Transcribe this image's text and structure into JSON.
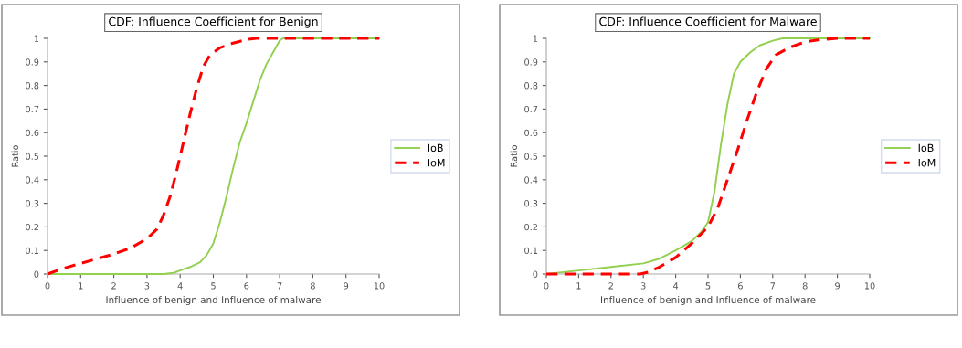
{
  "chart_data": [
    {
      "type": "line",
      "title": "CDF: Influence Coefficient for Benign",
      "xlabel": "Influence of benign and Influence of malware",
      "ylabel": "Ratio",
      "xlim": [
        0,
        10
      ],
      "xticks": [
        0,
        1,
        2,
        3,
        4,
        5,
        6,
        7,
        8,
        9,
        10
      ],
      "ylim": [
        0,
        1
      ],
      "yticks": [
        0,
        0.1,
        0.2,
        0.3,
        0.4,
        0.5,
        0.6,
        0.7,
        0.8,
        0.9,
        1
      ],
      "grid": false,
      "legend": "right",
      "series": [
        {
          "name": "IoB",
          "color": "#92d050",
          "line_style": "solid",
          "x": [
            0,
            1,
            2,
            3,
            3.5,
            3.8,
            4,
            4.3,
            4.6,
            4.8,
            5,
            5.2,
            5.4,
            5.6,
            5.8,
            6,
            6.2,
            6.4,
            6.6,
            6.8,
            7,
            7.1,
            8,
            10
          ],
          "values": [
            0,
            0,
            0,
            0,
            0,
            0.005,
            0.015,
            0.03,
            0.05,
            0.08,
            0.13,
            0.22,
            0.33,
            0.45,
            0.56,
            0.64,
            0.73,
            0.82,
            0.89,
            0.94,
            0.99,
            1,
            1,
            1
          ]
        },
        {
          "name": "IoM",
          "color": "#ff0000",
          "line_style": "dashed",
          "x": [
            0,
            0.5,
            1,
            1.5,
            2,
            2.5,
            3,
            3.3,
            3.5,
            3.7,
            3.9,
            4.1,
            4.3,
            4.5,
            4.7,
            4.9,
            5.2,
            5.6,
            6,
            6.3,
            7,
            8,
            9,
            10
          ],
          "values": [
            0,
            0.025,
            0.045,
            0.065,
            0.085,
            0.11,
            0.15,
            0.19,
            0.25,
            0.33,
            0.44,
            0.56,
            0.68,
            0.79,
            0.88,
            0.93,
            0.96,
            0.98,
            0.995,
            1,
            1,
            1,
            1,
            1
          ]
        }
      ]
    },
    {
      "type": "line",
      "title": "CDF: Influence Coefficient for Malware",
      "xlabel": "Influence of benign and Influence of malware",
      "ylabel": "Ratio",
      "xlim": [
        0,
        10
      ],
      "xticks": [
        0,
        1,
        2,
        3,
        4,
        5,
        6,
        7,
        8,
        9,
        10
      ],
      "ylim": [
        0,
        1
      ],
      "yticks": [
        0,
        0.1,
        0.2,
        0.3,
        0.4,
        0.5,
        0.6,
        0.7,
        0.8,
        0.9,
        1
      ],
      "grid": false,
      "legend": "right",
      "series": [
        {
          "name": "IoB",
          "color": "#92d050",
          "line_style": "solid",
          "x": [
            0,
            1,
            2,
            3,
            3.5,
            4,
            4.5,
            4.8,
            5,
            5.2,
            5.4,
            5.6,
            5.8,
            6,
            6.3,
            6.6,
            7,
            7.3,
            8,
            9,
            10
          ],
          "values": [
            0,
            0.015,
            0.03,
            0.045,
            0.065,
            0.1,
            0.14,
            0.18,
            0.22,
            0.35,
            0.55,
            0.72,
            0.85,
            0.9,
            0.94,
            0.97,
            0.99,
            1,
            1,
            1,
            1
          ]
        },
        {
          "name": "IoM",
          "color": "#ff0000",
          "line_style": "dashed",
          "x": [
            0,
            1,
            2,
            2.9,
            3.2,
            3.5,
            4,
            4.5,
            5,
            5.3,
            5.6,
            5.9,
            6.2,
            6.5,
            6.8,
            7.1,
            7.5,
            8,
            8.5,
            9,
            10
          ],
          "values": [
            0,
            0,
            0,
            0,
            0.01,
            0.03,
            0.07,
            0.13,
            0.2,
            0.28,
            0.4,
            0.52,
            0.65,
            0.77,
            0.87,
            0.93,
            0.96,
            0.985,
            0.995,
            1,
            1
          ]
        }
      ]
    }
  ]
}
